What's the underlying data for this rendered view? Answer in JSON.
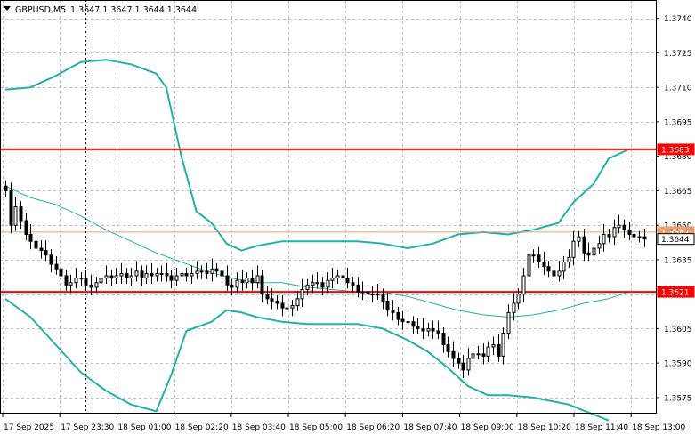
{
  "chart_header": {
    "menu_arrow": "dropdown-triangle-icon",
    "symbol": "GBPUSD,M5",
    "ohlc": "1.3647 1.3647 1.3644 1.3644"
  },
  "colors": {
    "background": "#ffffff",
    "grid": "#c0c0c0",
    "candle": "#000000",
    "bollinger": "#20b2aa",
    "moving_average": "#20b2aa",
    "support_resistance": "#ff0000",
    "last_price_line": "#e8a070",
    "tag_text_light": "#ffffff",
    "tag_current_bg": "#ffffff",
    "tag_last_bg": "#e8a070"
  },
  "chart_data": {
    "type": "candlestick",
    "timeframe": "M5",
    "y_axis": {
      "ticks": [
        "1.3740",
        "1.3725",
        "1.3710",
        "1.3695",
        "1.3680",
        "1.3665",
        "1.3650",
        "1.3635",
        "1.3620",
        "1.3605",
        "1.3590",
        "1.3575"
      ],
      "ylim": [
        1.3568,
        1.3748
      ]
    },
    "x_axis": {
      "ticks": [
        "17 Sep 2025",
        "17 Sep 23:30",
        "18 Sep 01:00",
        "18 Sep 02:20",
        "18 Sep 03:40",
        "18 Sep 05:00",
        "18 Sep 06:20",
        "18 Sep 07:40",
        "18 Sep 09:00",
        "18 Sep 10:20",
        "18 Sep 11:40",
        "18 Sep 13:00"
      ]
    },
    "horizontal_levels": [
      {
        "label": "1.3683",
        "value": 1.3683,
        "style": "red"
      },
      {
        "label": "1.3621",
        "value": 1.3621,
        "style": "red"
      }
    ],
    "price_tags": [
      {
        "label": "1.3647",
        "value": 1.3647,
        "style": "last"
      },
      {
        "label": "1.3644",
        "value": 1.3644,
        "style": "current"
      }
    ],
    "crosshair_x_index": 16,
    "closes": [
      1.3665,
      1.365,
      1.3658,
      1.3652,
      1.3646,
      1.3643,
      1.364,
      1.3639,
      1.3637,
      1.3633,
      1.3631,
      1.3628,
      1.3624,
      1.3625,
      1.3627,
      1.3627,
      1.3624,
      1.3623,
      1.3625,
      1.3627,
      1.3628,
      1.3627,
      1.3628,
      1.3629,
      1.3627,
      1.3628,
      1.363,
      1.3627,
      1.3629,
      1.3628,
      1.3629,
      1.3629,
      1.3628,
      1.3626,
      1.3628,
      1.3629,
      1.3628,
      1.3629,
      1.363,
      1.363,
      1.3629,
      1.3631,
      1.363,
      1.3628,
      1.3624,
      1.3623,
      1.3626,
      1.3625,
      1.3627,
      1.3625,
      1.3628,
      1.362,
      1.3618,
      1.3617,
      1.3616,
      1.3614,
      1.3614,
      1.3615,
      1.3618,
      1.3622,
      1.3624,
      1.3625,
      1.3625,
      1.3623,
      1.3626,
      1.3627,
      1.3628,
      1.3627,
      1.3625,
      1.3624,
      1.3621,
      1.3621,
      1.362,
      1.362,
      1.362,
      1.3617,
      1.3613,
      1.3612,
      1.3609,
      1.3608,
      1.3608,
      1.3606,
      1.3605,
      1.3604,
      1.3605,
      1.3604,
      1.3603,
      1.3598,
      1.3595,
      1.3592,
      1.359,
      1.3587,
      1.3592,
      1.3594,
      1.3594,
      1.3593,
      1.3597,
      1.3598,
      1.3593,
      1.3603,
      1.3612,
      1.3616,
      1.362,
      1.3628,
      1.3637,
      1.3637,
      1.3634,
      1.3632,
      1.363,
      1.3628,
      1.363,
      1.3634,
      1.3636,
      1.3643,
      1.3645,
      1.3638,
      1.3637,
      1.364,
      1.3642,
      1.3646,
      1.3645,
      1.3649,
      1.365,
      1.3648,
      1.3646,
      1.3645,
      1.3645,
      1.3644
    ],
    "indicators": {
      "bollinger_upper": [
        [
          0,
          1.3709
        ],
        [
          5,
          1.371
        ],
        [
          10,
          1.3715
        ],
        [
          15,
          1.3721
        ],
        [
          20,
          1.3722
        ],
        [
          25,
          1.372
        ],
        [
          30,
          1.3716
        ],
        [
          32,
          1.371
        ],
        [
          35,
          1.368
        ],
        [
          38,
          1.3656
        ],
        [
          41,
          1.3651
        ],
        [
          44,
          1.3642
        ],
        [
          47,
          1.3639
        ],
        [
          50,
          1.3641
        ],
        [
          55,
          1.3643
        ],
        [
          60,
          1.3643
        ],
        [
          65,
          1.3643
        ],
        [
          70,
          1.3643
        ],
        [
          75,
          1.3642
        ],
        [
          80,
          1.364
        ],
        [
          85,
          1.3642
        ],
        [
          90,
          1.3646
        ],
        [
          95,
          1.3647
        ],
        [
          100,
          1.3646
        ],
        [
          105,
          1.3648
        ],
        [
          110,
          1.3651
        ],
        [
          113,
          1.366
        ],
        [
          117,
          1.3668
        ],
        [
          120,
          1.3679
        ],
        [
          124,
          1.3683
        ]
      ],
      "bollinger_lower": [
        [
          0,
          1.3618
        ],
        [
          5,
          1.361
        ],
        [
          10,
          1.3598
        ],
        [
          15,
          1.3586
        ],
        [
          20,
          1.3578
        ],
        [
          25,
          1.3572
        ],
        [
          30,
          1.3569
        ],
        [
          33,
          1.3585
        ],
        [
          36,
          1.3604
        ],
        [
          41,
          1.3608
        ],
        [
          44,
          1.3613
        ],
        [
          47,
          1.3612
        ],
        [
          50,
          1.361
        ],
        [
          55,
          1.3608
        ],
        [
          60,
          1.3607
        ],
        [
          70,
          1.3607
        ],
        [
          75,
          1.3605
        ],
        [
          80,
          1.36
        ],
        [
          84,
          1.3595
        ],
        [
          88,
          1.3588
        ],
        [
          92,
          1.358
        ],
        [
          96,
          1.3576
        ],
        [
          100,
          1.3576
        ],
        [
          105,
          1.3575
        ],
        [
          112,
          1.3572
        ],
        [
          120,
          1.3565
        ]
      ],
      "moving_average": [
        [
          0,
          1.3667
        ],
        [
          5,
          1.3662
        ],
        [
          10,
          1.3659
        ],
        [
          15,
          1.3654
        ],
        [
          20,
          1.3648
        ],
        [
          25,
          1.3643
        ],
        [
          30,
          1.3638
        ],
        [
          35,
          1.3634
        ],
        [
          40,
          1.363
        ],
        [
          45,
          1.3627
        ],
        [
          50,
          1.3625
        ],
        [
          55,
          1.3625
        ],
        [
          60,
          1.3623
        ],
        [
          65,
          1.3622
        ],
        [
          70,
          1.3621
        ],
        [
          75,
          1.3621
        ],
        [
          80,
          1.3619
        ],
        [
          85,
          1.3616
        ],
        [
          90,
          1.3613
        ],
        [
          95,
          1.3611
        ],
        [
          100,
          1.361
        ],
        [
          105,
          1.3611
        ],
        [
          110,
          1.3613
        ],
        [
          115,
          1.3616
        ],
        [
          120,
          1.3618
        ],
        [
          124,
          1.3621
        ]
      ]
    }
  }
}
